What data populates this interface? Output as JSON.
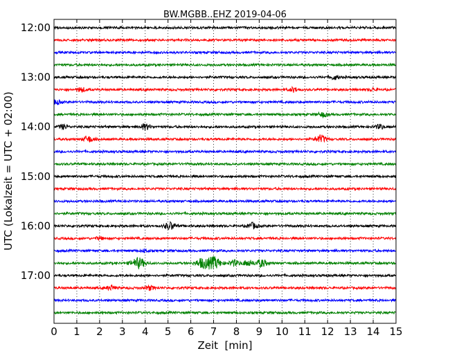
{
  "chart_data": {
    "type": "line",
    "title": "BW.MGBB..EHZ 2019-04-06",
    "xlabel": "Zeit  [min]",
    "ylabel": "UTC (Lokalzeit = UTC + 02:00)",
    "xlim": [
      0,
      15
    ],
    "x_ticks": [
      "0",
      "1",
      "2",
      "3",
      "4",
      "5",
      "6",
      "7",
      "8",
      "9",
      "10",
      "11",
      "12",
      "13",
      "14",
      "15"
    ],
    "y_ticks": [
      "12:00",
      "13:00",
      "14:00",
      "15:00",
      "16:00",
      "17:00"
    ],
    "row_interval_minutes": 15,
    "row_start": "12:00",
    "row_count": 24,
    "vertical_grid": true,
    "grid_style": "dotted",
    "colors": [
      "#000000",
      "#ff0000",
      "#0000ff",
      "#008000"
    ],
    "events": [
      {
        "row": 4,
        "x": 12.3,
        "amp": 3
      },
      {
        "row": 5,
        "x": 1.2,
        "amp": 3
      },
      {
        "row": 5,
        "x": 10.5,
        "amp": 3
      },
      {
        "row": 5,
        "x": 14.0,
        "amp": 2
      },
      {
        "row": 6,
        "x": 0.1,
        "amp": 3
      },
      {
        "row": 7,
        "x": 11.8,
        "amp": 3
      },
      {
        "row": 8,
        "x": 0.4,
        "amp": 3
      },
      {
        "row": 8,
        "x": 4.0,
        "amp": 4
      },
      {
        "row": 8,
        "x": 14.3,
        "amp": 3
      },
      {
        "row": 9,
        "x": 1.5,
        "amp": 4
      },
      {
        "row": 9,
        "x": 11.7,
        "amp": 5
      },
      {
        "row": 16,
        "x": 5.1,
        "amp": 5
      },
      {
        "row": 16,
        "x": 8.7,
        "amp": 4
      },
      {
        "row": 17,
        "x": 2.0,
        "amp": 2
      },
      {
        "row": 18,
        "x": 4.0,
        "amp": 2
      },
      {
        "row": 19,
        "x": 3.7,
        "amp": 7
      },
      {
        "row": 19,
        "x": 6.5,
        "amp": 6
      },
      {
        "row": 19,
        "x": 7.0,
        "amp": 8
      },
      {
        "row": 19,
        "x": 7.9,
        "amp": 4
      },
      {
        "row": 19,
        "x": 8.5,
        "amp": 4
      },
      {
        "row": 19,
        "x": 9.1,
        "amp": 5
      },
      {
        "row": 21,
        "x": 2.5,
        "amp": 3
      },
      {
        "row": 21,
        "x": 4.2,
        "amp": 3
      }
    ]
  }
}
